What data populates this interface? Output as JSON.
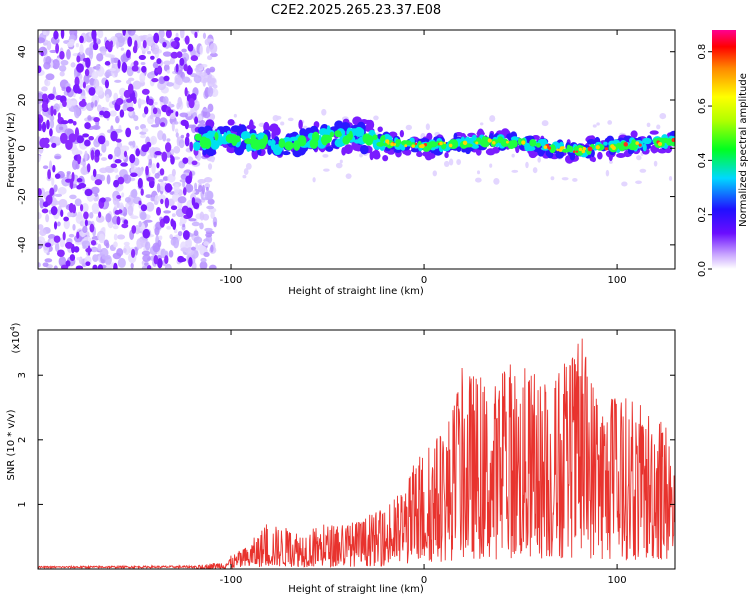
{
  "title": "C2E2.2025.265.23.37.E08",
  "colors": {
    "snr_line": "#e8332e",
    "axis": "#000000",
    "background": "#ffffff"
  },
  "chart_data": [
    {
      "type": "heatmap",
      "name": "spectrogram",
      "xlabel": "Height of straight line (km)",
      "ylabel": "Frequency (Hz)",
      "xlim": [
        -200,
        130
      ],
      "ylim": [
        -50,
        49
      ],
      "x_ticks": [
        "-100",
        "0",
        "100"
      ],
      "x_tick_values": [
        -100,
        0,
        100
      ],
      "y_ticks": [
        "-40",
        "-20",
        "0",
        "20",
        "40"
      ],
      "y_tick_values": [
        -40,
        -20,
        0,
        20,
        40
      ],
      "noise_region_x": [
        -200,
        -118
      ],
      "signal_track": [
        {
          "x": -118,
          "y": 3
        },
        {
          "x": -100,
          "y": 4
        },
        {
          "x": -80,
          "y": 2
        },
        {
          "x": -60,
          "y": 3
        },
        {
          "x": -45,
          "y": 5
        },
        {
          "x": -30,
          "y": 4
        },
        {
          "x": -15,
          "y": 2
        },
        {
          "x": 0,
          "y": 1
        },
        {
          "x": 20,
          "y": 2
        },
        {
          "x": 40,
          "y": 3
        },
        {
          "x": 60,
          "y": 1
        },
        {
          "x": 80,
          "y": -1
        },
        {
          "x": 100,
          "y": 1
        },
        {
          "x": 115,
          "y": 2
        },
        {
          "x": 130,
          "y": 3
        }
      ]
    },
    {
      "type": "colorbar",
      "name": "amplitude-colorbar",
      "label": "Normalized spectral amplitude",
      "range": [
        0,
        0.88
      ],
      "ticks": [
        "0.0",
        "0.2",
        "0.4",
        "0.6",
        "0.8"
      ],
      "tick_values": [
        0.0,
        0.2,
        0.4,
        0.6,
        0.8
      ]
    },
    {
      "type": "line",
      "name": "snr",
      "xlabel": "Height of straight line (km)",
      "ylabel": "SNR (10 * v/v)",
      "y_scale_label": "(x10",
      "y_scale_exp": "4",
      "y_scale_close": ")",
      "xlim": [
        -200,
        130
      ],
      "ylim": [
        0,
        3.7
      ],
      "x_ticks": [
        "-100",
        "0",
        "100"
      ],
      "x_tick_values": [
        -100,
        0,
        100
      ],
      "y_ticks": [
        "1",
        "2",
        "3"
      ],
      "y_tick_values": [
        1,
        2,
        3
      ],
      "envelope": [
        {
          "x": -200,
          "y": 0.03
        },
        {
          "x": -120,
          "y": 0.04
        },
        {
          "x": -105,
          "y": 0.12
        },
        {
          "x": -92,
          "y": 0.35
        },
        {
          "x": -82,
          "y": 0.7
        },
        {
          "x": -65,
          "y": 0.62
        },
        {
          "x": -50,
          "y": 0.7
        },
        {
          "x": -35,
          "y": 0.75
        },
        {
          "x": -20,
          "y": 0.95
        },
        {
          "x": -10,
          "y": 1.3
        },
        {
          "x": -3,
          "y": 1.8
        },
        {
          "x": 5,
          "y": 2.05
        },
        {
          "x": 10,
          "y": 2.25
        },
        {
          "x": 15,
          "y": 2.6
        },
        {
          "x": 20,
          "y": 3.15
        },
        {
          "x": 25,
          "y": 3.1
        },
        {
          "x": 35,
          "y": 2.85
        },
        {
          "x": 45,
          "y": 3.3
        },
        {
          "x": 55,
          "y": 3.1
        },
        {
          "x": 65,
          "y": 2.95
        },
        {
          "x": 75,
          "y": 3.3
        },
        {
          "x": 82,
          "y": 3.6
        },
        {
          "x": 88,
          "y": 3.0
        },
        {
          "x": 95,
          "y": 2.7
        },
        {
          "x": 105,
          "y": 2.7
        },
        {
          "x": 115,
          "y": 2.5
        },
        {
          "x": 120,
          "y": 2.8
        },
        {
          "x": 130,
          "y": 1.9
        }
      ]
    }
  ]
}
